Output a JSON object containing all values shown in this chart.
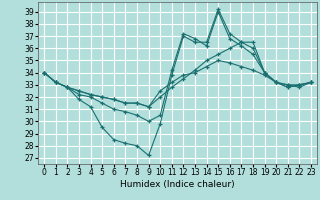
{
  "xlabel": "Humidex (Indice chaleur)",
  "bg_color": "#b2dfdb",
  "grid_color": "#ffffff",
  "line_color": "#1a7070",
  "xlim": [
    -0.5,
    23.5
  ],
  "ylim": [
    26.5,
    39.8
  ],
  "yticks": [
    27,
    28,
    29,
    30,
    31,
    32,
    33,
    34,
    35,
    36,
    37,
    38,
    39
  ],
  "xticks": [
    0,
    1,
    2,
    3,
    4,
    5,
    6,
    7,
    8,
    9,
    10,
    11,
    12,
    13,
    14,
    15,
    16,
    17,
    18,
    19,
    20,
    21,
    22,
    23
  ],
  "series": [
    {
      "x": [
        0,
        1,
        2,
        3,
        4,
        5,
        6,
        7,
        8,
        9,
        10,
        11,
        12,
        13,
        14,
        15,
        16,
        17,
        18,
        19,
        20,
        21,
        22,
        23
      ],
      "y": [
        34.0,
        33.2,
        32.8,
        31.8,
        31.2,
        29.5,
        28.5,
        28.2,
        28.0,
        27.2,
        29.8,
        33.8,
        37.0,
        36.5,
        36.5,
        39.2,
        37.2,
        36.5,
        36.0,
        34.0,
        33.2,
        32.8,
        33.0,
        33.2
      ]
    },
    {
      "x": [
        0,
        1,
        2,
        3,
        4,
        5,
        6,
        7,
        8,
        9,
        10,
        11,
        12,
        13,
        14,
        15,
        16,
        17,
        18,
        19,
        20,
        21,
        22,
        23
      ],
      "y": [
        34.0,
        33.2,
        32.8,
        32.5,
        32.2,
        32.0,
        31.8,
        31.5,
        31.5,
        31.2,
        32.0,
        32.8,
        33.5,
        34.2,
        35.0,
        35.5,
        36.0,
        36.5,
        36.5,
        34.0,
        33.2,
        33.0,
        32.8,
        33.2
      ]
    },
    {
      "x": [
        0,
        1,
        2,
        3,
        4,
        5,
        6,
        7,
        8,
        9,
        10,
        11,
        12,
        13,
        14,
        15,
        16,
        17,
        18,
        19,
        20,
        21,
        22,
        23
      ],
      "y": [
        34.0,
        33.2,
        32.8,
        32.5,
        32.2,
        32.0,
        31.8,
        31.5,
        31.5,
        31.2,
        32.5,
        33.2,
        33.8,
        34.0,
        34.5,
        35.0,
        34.8,
        34.5,
        34.2,
        33.8,
        33.2,
        33.0,
        33.0,
        33.2
      ]
    },
    {
      "x": [
        0,
        1,
        2,
        3,
        4,
        5,
        6,
        7,
        8,
        9,
        10,
        11,
        12,
        13,
        14,
        15,
        16,
        17,
        18,
        19,
        20,
        21,
        22,
        23
      ],
      "y": [
        34.0,
        33.2,
        32.8,
        32.2,
        32.0,
        31.5,
        31.0,
        30.8,
        30.5,
        30.0,
        30.5,
        34.2,
        37.2,
        36.8,
        36.2,
        39.0,
        36.8,
        36.2,
        35.5,
        34.0,
        33.2,
        32.8,
        33.0,
        33.2
      ]
    }
  ]
}
